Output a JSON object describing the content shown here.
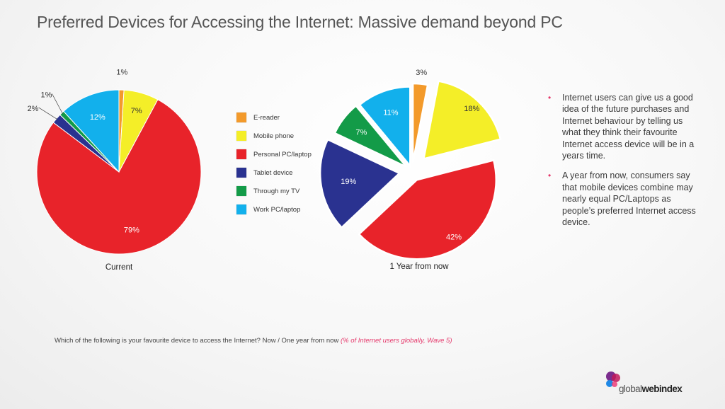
{
  "title": "Preferred Devices for Accessing the Internet: Massive demand beyond PC",
  "legend": [
    {
      "label": "E-reader",
      "color": "#f39a2b"
    },
    {
      "label": "Mobile phone",
      "color": "#f4ee28"
    },
    {
      "label": "Personal PC/laptop",
      "color": "#e8232a"
    },
    {
      "label": "Tablet device",
      "color": "#2a3290"
    },
    {
      "label": "Through my TV",
      "color": "#139b48"
    },
    {
      "label": "Work PC/laptop",
      "color": "#12b0ec"
    }
  ],
  "chart_data": [
    {
      "type": "pie",
      "caption": "Current",
      "slices": [
        {
          "name": "E-reader",
          "value": 1,
          "label": "1%"
        },
        {
          "name": "Mobile phone",
          "value": 7,
          "label": "7%"
        },
        {
          "name": "Personal PC/laptop",
          "value": 79,
          "label": "79%"
        },
        {
          "name": "Tablet device",
          "value": 2,
          "label": "2%"
        },
        {
          "name": "Through my TV",
          "value": 1,
          "label": "1%"
        },
        {
          "name": "Work PC/laptop",
          "value": 12,
          "label": "12%"
        }
      ]
    },
    {
      "type": "pie",
      "caption": "1 Year from now",
      "exploded": true,
      "slices": [
        {
          "name": "E-reader",
          "value": 3,
          "label": "3%"
        },
        {
          "name": "Mobile phone",
          "value": 18,
          "label": "18%"
        },
        {
          "name": "Personal PC/laptop",
          "value": 42,
          "label": "42%"
        },
        {
          "name": "Tablet device",
          "value": 19,
          "label": "19%"
        },
        {
          "name": "Through my TV",
          "value": 7,
          "label": "7%"
        },
        {
          "name": "Work PC/laptop",
          "value": 11,
          "label": "11%"
        }
      ]
    }
  ],
  "bullets": [
    "Internet users can give us  a good idea of the future purchases and Internet behaviour by telling us what they think their favourite Internet access device will be in a years time.",
    "A year from now, consumers say that mobile devices combine may nearly equal PC/Laptops as people’s preferred Internet access device."
  ],
  "bullet_marker": "•",
  "footnote": {
    "question": "Which of the following is your favourite device to access the Internet? Now / One year from now",
    "source": "(% of Internet users globally, Wave 5)"
  },
  "brand": {
    "prefix": "global",
    "suffix": "webindex"
  }
}
